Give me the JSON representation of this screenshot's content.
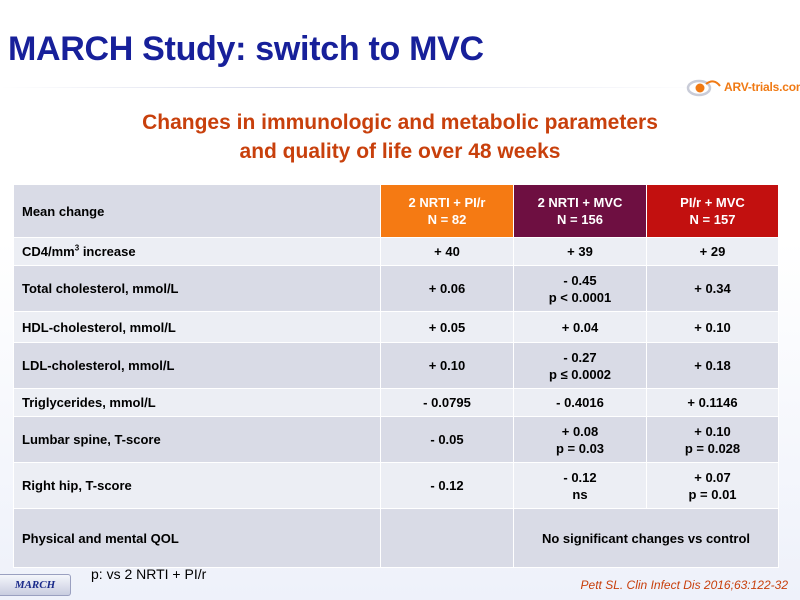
{
  "title": "MARCH Study: switch to MVC",
  "logo_text": "ARV-trials.com",
  "subtitle": [
    "Changes in immunologic and metabolic parameters",
    "and quality of life over 48 weeks"
  ],
  "colors": {
    "title": "#17209a",
    "accent": "#c8400c",
    "arm1": "#f57a13",
    "arm2": "#6e0f41",
    "arm3": "#c2100f"
  },
  "table": {
    "header": {
      "label": "Mean change",
      "arms": [
        {
          "line1": "2 NRTI + PI/r",
          "line2": "N = 82"
        },
        {
          "line1": "2 NRTI + MVC",
          "line2": "N = 156"
        },
        {
          "line1": "PI/r + MVC",
          "line2": "N = 157"
        }
      ]
    },
    "rows": [
      {
        "label": "CD4/mm",
        "label_sup": "3",
        "label_rest": " increase",
        "c1": [
          "+ 40"
        ],
        "c2": [
          "+ 39"
        ],
        "c3": [
          "+ 29"
        ]
      },
      {
        "label": "Total cholesterol, mmol/L",
        "c1": [
          "+ 0.06"
        ],
        "c2": [
          "- 0.45",
          "p < 0.0001"
        ],
        "c3": [
          "+ 0.34"
        ]
      },
      {
        "label": "HDL-cholesterol, mmol/L",
        "c1": [
          "+ 0.05"
        ],
        "c2": [
          "+ 0.04"
        ],
        "c3": [
          "+ 0.10"
        ]
      },
      {
        "label": "LDL-cholesterol, mmol/L",
        "c1": [
          "+ 0.10"
        ],
        "c2": [
          "- 0.27",
          "p ≤ 0.0002"
        ],
        "c3": [
          "+ 0.18"
        ]
      },
      {
        "label": "Triglycerides, mmol/L",
        "c1": [
          "- 0.0795"
        ],
        "c2": [
          "- 0.4016"
        ],
        "c3": [
          "+ 0.1146"
        ]
      },
      {
        "label": "Lumbar spine, T-score",
        "c1": [
          "- 0.05"
        ],
        "c2": [
          "+ 0.08",
          "p = 0.03"
        ],
        "c3": [
          "+ 0.10",
          "p = 0.028"
        ]
      },
      {
        "label": "Right hip, T-score",
        "c1": [
          "- 0.12"
        ],
        "c2": [
          "- 0.12",
          "ns"
        ],
        "c3": [
          "+ 0.07",
          "p = 0.01"
        ]
      },
      {
        "label": "Physical and mental QOL",
        "c1": [
          ""
        ],
        "c23": "No significant changes vs control"
      }
    ]
  },
  "footnote": "p: vs 2 NRTI + PI/r",
  "tag": "MARCH",
  "reference": "Pett SL. Clin Infect Dis 2016;63:122-32"
}
